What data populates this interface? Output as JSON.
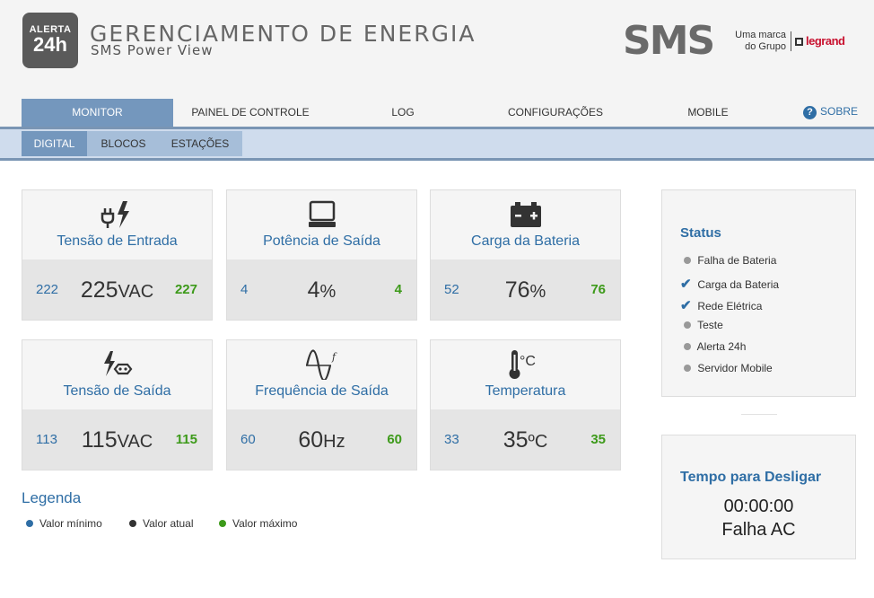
{
  "header": {
    "logo_line1": "ALERTA",
    "logo_line2": "24h",
    "title": "GERENCIAMENTO DE ENERGIA",
    "subtitle": "SMS Power View",
    "sms_logo": "SMS",
    "brand_line1": "Uma marca",
    "brand_line2": "do Grupo",
    "legrand": "legrand"
  },
  "nav": {
    "items": [
      {
        "label": "MONITOR",
        "active": true
      },
      {
        "label": "PAINEL DE CONTROLE",
        "active": false
      },
      {
        "label": "LOG",
        "active": false
      },
      {
        "label": "CONFIGURAÇÕES",
        "active": false
      },
      {
        "label": "MOBILE",
        "active": false
      }
    ],
    "sobre_icon": "?",
    "sobre": "SOBRE"
  },
  "subnav": {
    "items": [
      {
        "label": "DIGITAL",
        "active": true
      },
      {
        "label": "BLOCOS",
        "active": false
      },
      {
        "label": "ESTAÇÕES",
        "active": false
      }
    ]
  },
  "cards": [
    {
      "title": "Tensão de Entrada",
      "icon": "plug-lightning-icon",
      "min": "222",
      "current": "225",
      "unit": "VAC",
      "max": "227"
    },
    {
      "title": "Potência de Saída",
      "icon": "monitor-icon",
      "min": "4",
      "current": "4",
      "unit": "%",
      "max": "4"
    },
    {
      "title": "Carga da Bateria",
      "icon": "battery-icon",
      "min": "52",
      "current": "76",
      "unit": "%",
      "max": "76"
    },
    {
      "title": "Tensão de Saída",
      "icon": "lightning-outlet-icon",
      "min": "113",
      "current": "115",
      "unit": "VAC",
      "max": "115"
    },
    {
      "title": "Frequência de Saída",
      "icon": "sine-wave-icon",
      "min": "60",
      "current": "60",
      "unit": "Hz",
      "max": "60"
    },
    {
      "title": "Temperatura",
      "icon": "thermometer-icon",
      "min": "33",
      "current": "35",
      "unit": "ºC",
      "max": "35"
    }
  ],
  "icon_labels": {
    "frequency_f": "f",
    "celsius": "°C"
  },
  "legend": {
    "title": "Legenda",
    "items": [
      {
        "label": "Valor mínimo",
        "color": "#2f6ea5"
      },
      {
        "label": "Valor atual",
        "color": "#333333"
      },
      {
        "label": "Valor máximo",
        "color": "#3d9a1a"
      }
    ]
  },
  "status": {
    "title": "Status",
    "items": [
      {
        "label": "Falha de Bateria",
        "state": "inactive"
      },
      {
        "label": "Carga da Bateria",
        "state": "checked"
      },
      {
        "label": "Rede Elétrica",
        "state": "checked"
      },
      {
        "label": "Teste",
        "state": "inactive"
      },
      {
        "label": "Alerta 24h",
        "state": "inactive"
      },
      {
        "label": "Servidor Mobile",
        "state": "inactive"
      }
    ]
  },
  "shutdown": {
    "title": "Tempo para Desligar",
    "time": "00:00:00",
    "status": "Falha AC"
  },
  "colors": {
    "accent": "#7497bd",
    "min": "#2f6ea5",
    "max": "#3d9a1a"
  }
}
